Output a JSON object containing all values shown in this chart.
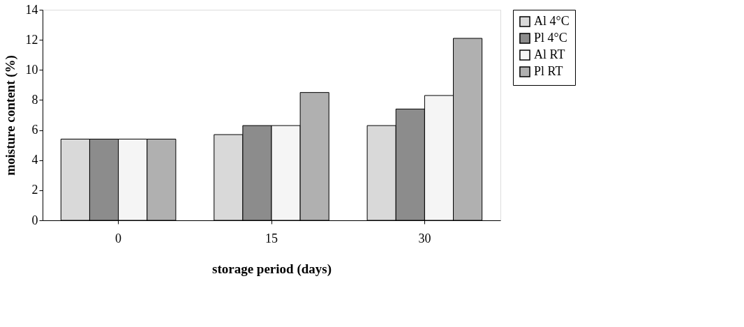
{
  "chart_data": {
    "type": "bar",
    "xlabel": "storage period (days)",
    "ylabel": "moisture content (%)",
    "categories": [
      "0",
      "15",
      "30"
    ],
    "series": [
      {
        "name": "Al 4°C",
        "color": "#d9d9d9",
        "values": [
          5.4,
          5.7,
          6.3
        ]
      },
      {
        "name": "Pl 4°C",
        "color": "#8c8c8c",
        "values": [
          5.4,
          6.3,
          7.4
        ]
      },
      {
        "name": "Al RT",
        "color": "#f5f5f5",
        "values": [
          5.4,
          6.3,
          8.3
        ]
      },
      {
        "name": "Pl RT",
        "color": "#b0b0b0",
        "values": [
          5.4,
          8.5,
          12.1
        ]
      }
    ],
    "ylim": [
      0,
      14
    ],
    "yticks": [
      0,
      2,
      4,
      6,
      8,
      10,
      12,
      14
    ],
    "grid": false,
    "legend": "right"
  }
}
